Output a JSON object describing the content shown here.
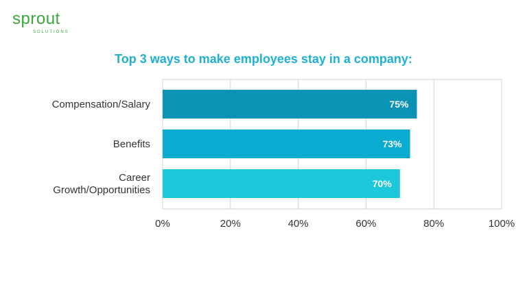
{
  "logo": {
    "main": "sprout",
    "sub": "SOLUTIONS",
    "color": "#3aa63c"
  },
  "chart_data": {
    "type": "bar",
    "orientation": "horizontal",
    "title": "Top 3 ways to make employees stay in a company:",
    "categories": [
      "Compensation/Salary",
      "Benefits",
      "Career\nGrowth/Opportunities"
    ],
    "values": [
      75,
      73,
      70
    ],
    "value_labels": [
      "75%",
      "73%",
      "70%"
    ],
    "bar_colors": [
      "#0a93b4",
      "#09acd0",
      "#1ec8dc"
    ],
    "xlim": [
      0,
      100
    ],
    "xticks": [
      0,
      20,
      40,
      60,
      80,
      100
    ],
    "xtick_labels": [
      "0%",
      "20%",
      "40%",
      "60%",
      "80%",
      "100%"
    ],
    "grid": true,
    "title_color": "#1eb0d4"
  }
}
